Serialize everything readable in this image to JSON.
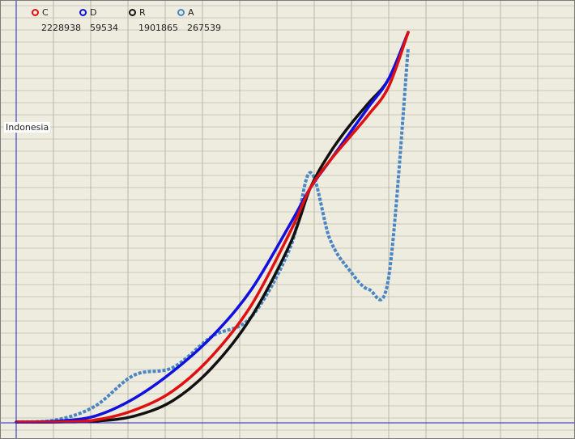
{
  "country": "Indonesia",
  "legend": [
    {
      "key": "C",
      "value": "2228938",
      "color": "#e01010"
    },
    {
      "key": "D",
      "value": "59534",
      "color": "#1010e0"
    },
    {
      "key": "R",
      "value": "1901865",
      "color": "#111111"
    },
    {
      "key": "A",
      "value": "267539",
      "color": "#4a86c4"
    }
  ],
  "chart_data": {
    "type": "line",
    "title": "Indonesia",
    "xlabel": "",
    "ylabel": "",
    "x": [
      0,
      10,
      20,
      30,
      40,
      50,
      60,
      70,
      75,
      80,
      85,
      90,
      95,
      100
    ],
    "xlim": [
      0,
      100
    ],
    "ylim": [
      0,
      100
    ],
    "normalized": true,
    "grid": true,
    "legend_position": "top-left",
    "series": [
      {
        "name": "C",
        "color": "#e01010",
        "values": [
          0,
          0,
          0.5,
          3,
          8,
          17,
          30,
          49,
          60,
          67,
          73,
          79,
          86,
          100
        ]
      },
      {
        "name": "D",
        "color": "#1010e0",
        "values": [
          0,
          0.2,
          1.5,
          6,
          13,
          22,
          34,
          51,
          60,
          67,
          74,
          81,
          88,
          100
        ]
      },
      {
        "name": "R",
        "color": "#111111",
        "values": [
          0,
          0,
          0.2,
          1.5,
          5.5,
          14,
          27,
          46,
          60,
          69,
          76,
          82,
          88,
          100
        ]
      },
      {
        "name": "A",
        "color": "#4a86c4",
        "values": [
          0,
          0.5,
          4,
          12,
          14,
          22,
          27,
          45,
          64,
          47,
          39,
          34,
          37,
          96
        ]
      }
    ]
  }
}
